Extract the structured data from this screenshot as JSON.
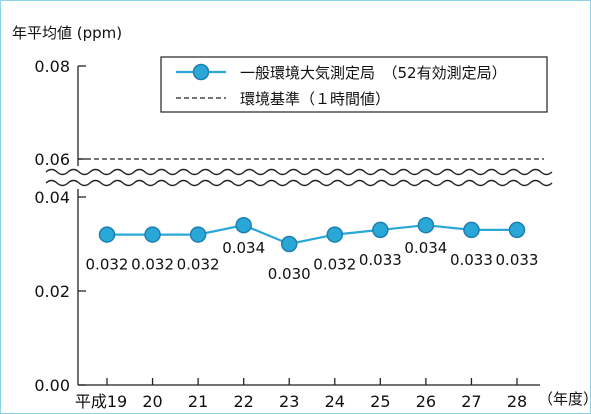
{
  "chart_data": {
    "type": "line",
    "ylabel": "年平均値 (ppm)",
    "xlabel": "（年度）",
    "categories": [
      "平成19",
      "20",
      "21",
      "22",
      "23",
      "24",
      "25",
      "26",
      "27",
      "28"
    ],
    "series": [
      {
        "name": "一般環境大気測定局　（52有効測定局）",
        "values": [
          0.032,
          0.032,
          0.032,
          0.034,
          0.03,
          0.032,
          0.033,
          0.034,
          0.033,
          0.033
        ],
        "labels": [
          "0.032",
          "0.032",
          "0.032",
          "0.034",
          "0.030",
          "0.032",
          "0.033",
          "0.034",
          "0.033",
          "0.033"
        ],
        "color": "#29a8d8"
      }
    ],
    "reference": {
      "name": "環境基準（１時間値）",
      "value": 0.06
    },
    "y_ticks": [
      "0.00",
      "0.02",
      "0.04",
      "0.06",
      "0.08"
    ],
    "ylim": [
      0,
      0.08
    ],
    "axis_break": [
      0.045,
      0.055
    ],
    "legend_position": "top-right",
    "grid": false
  }
}
